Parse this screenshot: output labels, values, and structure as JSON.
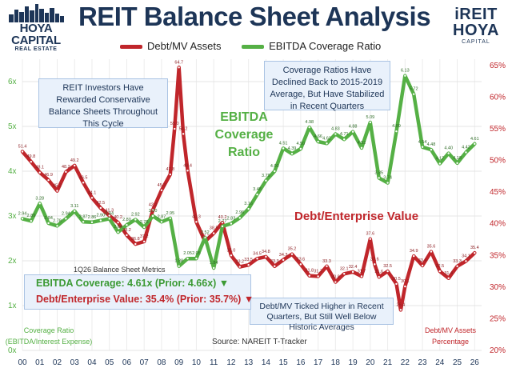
{
  "header": {
    "title": "REIT Balance Sheet Analysis",
    "logo_left": {
      "brand": "HOYA CAPITAL",
      "sub": "REAL ESTATE"
    },
    "logo_right": {
      "line1": "iREIT",
      "line2": "HOYA",
      "line3": "CAPITAL"
    }
  },
  "legend": {
    "debt": "Debt/MV Assets",
    "ebitda": "EBITDA Coverage Ratio"
  },
  "annotations": {
    "left_box": "REIT Investors Have Rewarded Conservative Balance Sheets Throughout This Cycle",
    "right_box": "Coverage Ratios Have Declined Back to 2015-2019 Average, But Have Stabilized in Recent Quarters",
    "bottom_box": "Debt/MV Ticked Higher in Recent Quarters, But Still Well Below Historic Averages",
    "ebitda_label": "EBITDA Coverage Ratio",
    "ev_label": "Debt/Enterprise Value",
    "metrics_title": "1Q26 Balance Sheet Metrics",
    "metric_ebitda": "EBITDA Coverage: 4.61x (Prior: 4.66x) ▼",
    "metric_ev": "Debt/Enterprise Value: 35.4% (Prior: 35.7%) ▼",
    "left_axis_note": "Coverage Ratio (EBITDA/Interest Expense)",
    "right_axis_note": "Debt/MV Assets Percentage",
    "source": "Source: NAREIT T-Tracker"
  },
  "colors": {
    "navy": "#1d3557",
    "debt": "#c0262b",
    "ebitda": "#55b045",
    "grid": "#e6e6e6",
    "box_fill": "#e9f1fb"
  },
  "chart_data": {
    "type": "line",
    "x_tick_labels": [
      "00",
      "01",
      "02",
      "03",
      "04",
      "05",
      "06",
      "07",
      "08",
      "09",
      "10",
      "11",
      "12",
      "13",
      "14",
      "15",
      "16",
      "17",
      "18",
      "19",
      "20",
      "21",
      "22",
      "23",
      "24",
      "25",
      "26"
    ],
    "x_range": [
      2000,
      2026.4
    ],
    "y_left": {
      "ticks": [
        "0x",
        "1x",
        "2x",
        "3x",
        "4x",
        "5x",
        "6x"
      ],
      "range": [
        0,
        6.5
      ],
      "color": "#55b045"
    },
    "y_right": {
      "ticks": [
        "20%",
        "25%",
        "30%",
        "35%",
        "40%",
        "45%",
        "50%",
        "55%",
        "60%",
        "65%"
      ],
      "range": [
        20,
        66
      ],
      "color": "#c0262b"
    },
    "grid": true,
    "legend_position": "top-center",
    "series": [
      {
        "name": "Debt/MV Assets",
        "axis": "right",
        "color": "#c0262b",
        "x": [
          2000,
          2000.5,
          2001,
          2001.5,
          2002,
          2002.5,
          2003,
          2003.5,
          2004,
          2004.5,
          2005,
          2005.5,
          2006,
          2006.5,
          2007,
          2007.5,
          2008,
          2008.5,
          2008.75,
          2009,
          2009.25,
          2009.5,
          2010,
          2010.5,
          2011,
          2011.5,
          2012,
          2012.5,
          2013,
          2013.5,
          2014,
          2014.5,
          2015,
          2015.5,
          2016,
          2016.5,
          2017,
          2017.5,
          2018,
          2018.5,
          2019,
          2019.5,
          2020,
          2020.25,
          2020.5,
          2021,
          2021.5,
          2021.75,
          2022,
          2022.5,
          2023,
          2023.5,
          2024,
          2024.5,
          2025,
          2025.5,
          2026
        ],
        "values": [
          51.4,
          49.8,
          48.1,
          46.9,
          45.2,
          48.2,
          49.2,
          46.5,
          44.1,
          42.5,
          41.3,
          40.2,
          38.2,
          36.8,
          37.2,
          42.2,
          45.3,
          47.8,
          55.0,
          64.7,
          54.2,
          48.4,
          40.3,
          37.2,
          38.5,
          40.2,
          35.0,
          33.2,
          33.5,
          34.5,
          34.8,
          33.3,
          34.3,
          35.2,
          33.6,
          31.8,
          31.7,
          33.3,
          30.8,
          32.1,
          32.4,
          31.7,
          37.6,
          33.6,
          31.6,
          32.5,
          30.5,
          26.4,
          30.1,
          34.9,
          33.4,
          35.6,
          32.5,
          31.4,
          33.3,
          34.1,
          35.4
        ]
      },
      {
        "name": "EBITDA Coverage Ratio",
        "axis": "left",
        "color": "#55b045",
        "x": [
          2000,
          2000.5,
          2001,
          2001.5,
          2002,
          2002.5,
          2003,
          2003.5,
          2004,
          2004.5,
          2005,
          2005.5,
          2006,
          2006.5,
          2007,
          2007.5,
          2008,
          2008.5,
          2009,
          2009.5,
          2010,
          2010.5,
          2011,
          2011.5,
          2012,
          2012.5,
          2013,
          2013.5,
          2014,
          2014.5,
          2015,
          2015.5,
          2016,
          2016.5,
          2017,
          2017.5,
          2018,
          2018.5,
          2019,
          2019.5,
          2020,
          2020.5,
          2021,
          2021.5,
          2022,
          2022.5,
          2023,
          2023.5,
          2024,
          2024.5,
          2025,
          2025.5,
          2026
        ],
        "values": [
          2.94,
          2.89,
          3.28,
          2.84,
          2.78,
          2.94,
          3.11,
          2.87,
          2.86,
          2.9,
          2.94,
          2.64,
          2.8,
          2.92,
          2.75,
          3.0,
          2.87,
          2.95,
          1.88,
          2.05,
          2.05,
          2.52,
          1.84,
          2.77,
          2.83,
          2.96,
          3.16,
          3.48,
          3.79,
          4.0,
          4.51,
          4.39,
          4.5,
          4.98,
          4.66,
          4.62,
          4.83,
          4.71,
          4.88,
          4.52,
          5.09,
          3.85,
          3.74,
          4.89,
          6.13,
          5.72,
          4.54,
          4.48,
          4.17,
          4.4,
          4.18,
          4.42,
          4.61
        ]
      }
    ]
  }
}
